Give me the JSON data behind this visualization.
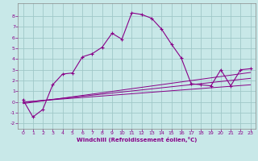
{
  "xlabel": "Windchill (Refroidissement éolien,°C)",
  "background_color": "#c8e8e8",
  "line_color": "#880088",
  "grid_color": "#a0c8c8",
  "spine_color": "#888888",
  "xlim": [
    -0.5,
    23.5
  ],
  "ylim": [
    -2.5,
    9.2
  ],
  "xticks": [
    0,
    1,
    2,
    3,
    4,
    5,
    6,
    7,
    8,
    9,
    10,
    11,
    12,
    13,
    14,
    15,
    16,
    17,
    18,
    19,
    20,
    21,
    22,
    23
  ],
  "yticks": [
    -2,
    -1,
    0,
    1,
    2,
    3,
    4,
    5,
    6,
    7,
    8
  ],
  "main_x": [
    0,
    1,
    2,
    3,
    4,
    5,
    6,
    7,
    8,
    9,
    10,
    11,
    12,
    13,
    14,
    15,
    16,
    17,
    18,
    19,
    20,
    21,
    22,
    23
  ],
  "main_y": [
    0.2,
    -1.4,
    -0.7,
    1.6,
    2.6,
    2.7,
    4.2,
    4.5,
    5.1,
    6.4,
    5.85,
    8.3,
    8.15,
    7.8,
    6.8,
    5.4,
    4.1,
    1.7,
    1.6,
    1.5,
    3.0,
    1.5,
    3.0,
    3.1
  ],
  "line1_x": [
    0,
    23
  ],
  "line1_y": [
    -0.15,
    2.75
  ],
  "line2_x": [
    0,
    23
  ],
  "line2_y": [
    -0.05,
    2.2
  ],
  "line3_x": [
    0,
    23
  ],
  "line3_y": [
    0.0,
    1.6
  ]
}
